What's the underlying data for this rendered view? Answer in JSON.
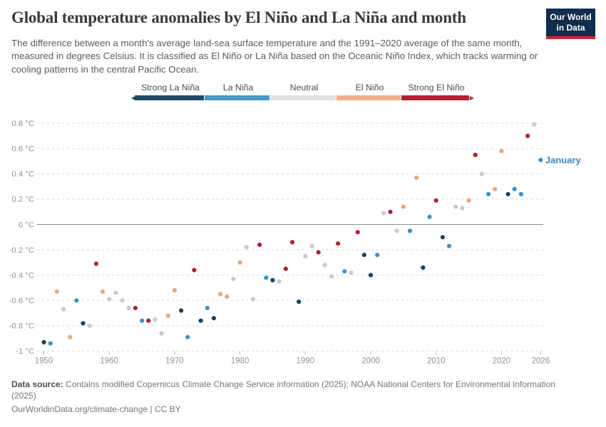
{
  "header": {
    "title": "Global temperature anomalies by El Niño and La Niña and month",
    "subtitle": "The difference between a month's average land-sea surface temperature and the 1991–2020 average of the same month, measured in degrees Celsius. It is classified as El Niño or La Niña based on the Oceanic Niño Index, which tracks warming or cooling patterns in the central Pacific Ocean.",
    "logo": {
      "line1": "Our World",
      "line2": "in Data",
      "bg_color": "#102d4e",
      "strip_color": "#d0262e"
    }
  },
  "legend": {
    "items": [
      {
        "label": "Strong La Niña",
        "color": "#1c4b66"
      },
      {
        "label": "La Niña",
        "color": "#4598c8"
      },
      {
        "label": "Neutral",
        "color": "#e0e0e0"
      },
      {
        "label": "El Niño",
        "color": "#f6ae86"
      },
      {
        "label": "Strong El Niño",
        "color": "#b6202f"
      }
    ]
  },
  "chart_data": {
    "type": "scatter",
    "title": "Global temperature anomalies by El Niño and La Niña and month",
    "series_label": "January",
    "end_label_color": "#3787bf",
    "x": [
      1950,
      1951,
      1952,
      1953,
      1954,
      1955,
      1956,
      1957,
      1958,
      1959,
      1960,
      1961,
      1962,
      1963,
      1964,
      1965,
      1966,
      1967,
      1968,
      1969,
      1970,
      1971,
      1972,
      1973,
      1974,
      1975,
      1976,
      1977,
      1978,
      1979,
      1980,
      1981,
      1982,
      1983,
      1984,
      1985,
      1986,
      1987,
      1988,
      1989,
      1990,
      1991,
      1992,
      1993,
      1994,
      1995,
      1996,
      1997,
      1998,
      1999,
      2000,
      2001,
      2002,
      2003,
      2004,
      2005,
      2006,
      2007,
      2008,
      2009,
      2010,
      2011,
      2012,
      2013,
      2014,
      2015,
      2016,
      2017,
      2018,
      2019,
      2020,
      2021,
      2022,
      2023,
      2024,
      2025,
      2026
    ],
    "values": [
      -0.93,
      -0.94,
      -0.53,
      -0.67,
      -0.89,
      -0.6,
      -0.78,
      -0.8,
      -0.31,
      -0.53,
      -0.59,
      -0.54,
      -0.6,
      -0.66,
      -0.66,
      -0.76,
      -0.76,
      -0.75,
      -0.86,
      -0.72,
      -0.52,
      -0.68,
      -0.89,
      -0.36,
      -0.76,
      -0.66,
      -0.74,
      -0.55,
      -0.57,
      -0.43,
      -0.3,
      -0.18,
      -0.59,
      -0.16,
      -0.42,
      -0.44,
      -0.45,
      -0.35,
      -0.14,
      -0.61,
      -0.25,
      -0.17,
      -0.22,
      -0.32,
      -0.41,
      -0.15,
      -0.37,
      -0.38,
      -0.06,
      -0.24,
      -0.4,
      -0.24,
      0.09,
      0.1,
      -0.05,
      0.14,
      -0.05,
      0.37,
      -0.34,
      0.06,
      0.19,
      -0.1,
      -0.17,
      0.14,
      0.13,
      0.19,
      0.55,
      0.4,
      0.24,
      0.28,
      0.58,
      0.24,
      0.28,
      0.24,
      0.7,
      0.79,
      0.51
    ],
    "phases": [
      "SL",
      "L",
      "E",
      "N",
      "E",
      "L",
      "SL",
      "N",
      "SE",
      "E",
      "N",
      "N",
      "N",
      "N",
      "SE",
      "L",
      "SE",
      "N",
      "N",
      "E",
      "E",
      "SL",
      "L",
      "SE",
      "SL",
      "L",
      "SL",
      "E",
      "E",
      "N",
      "E",
      "N",
      "N",
      "SE",
      "L",
      "SL",
      "N",
      "SE",
      "SE",
      "SL",
      "N",
      "N",
      "SE",
      "N",
      "N",
      "SE",
      "L",
      "N",
      "SE",
      "SL",
      "SL",
      "L",
      "N",
      "SE",
      "N",
      "E",
      "L",
      "E",
      "SL",
      "L",
      "SE",
      "SL",
      "L",
      "N",
      "N",
      "E",
      "SE",
      "N",
      "L",
      "E",
      "E",
      "SL",
      "L",
      "L",
      "SE",
      "N",
      "L"
    ],
    "phase_colors": {
      "SL": "#18435e",
      "L": "#3d91c6",
      "N": "#c9c9c9",
      "E": "#f0a378",
      "SE": "#b2212f"
    },
    "yticks": [
      0.8,
      0.6,
      0.4,
      0.2,
      0,
      -0.2,
      -0.4,
      -0.6,
      -0.8,
      -1
    ],
    "ytick_labels": [
      "0.8 °C",
      "0.6 °C",
      "0.4 °C",
      "0.2 °C",
      "0 °C",
      "-0.2 °C",
      "-0.4 °C",
      "-0.6 °C",
      "-0.8 °C",
      "-1 °C"
    ],
    "xticks": [
      1950,
      1960,
      1970,
      1980,
      1990,
      2000,
      2010,
      2020,
      2026
    ],
    "xtick_labels": [
      "1950",
      "1960",
      "1970",
      "1980",
      "1990",
      "2000",
      "2010",
      "2020",
      "2026"
    ],
    "xlim": [
      1949,
      2027.5
    ],
    "ylim": [
      -1.05,
      0.92
    ],
    "grid": "horizontal-dashed",
    "zero_line": true,
    "legend_position": "top"
  },
  "footer": {
    "source_label": "Data source:",
    "source_text": "Contains modified Copernicus Climate Change Service information (2025); NOAA National Centers for Environmental Information (2025)",
    "url": "OurWorldinData.org/climate-change",
    "separator": " | ",
    "license": "CC BY"
  }
}
